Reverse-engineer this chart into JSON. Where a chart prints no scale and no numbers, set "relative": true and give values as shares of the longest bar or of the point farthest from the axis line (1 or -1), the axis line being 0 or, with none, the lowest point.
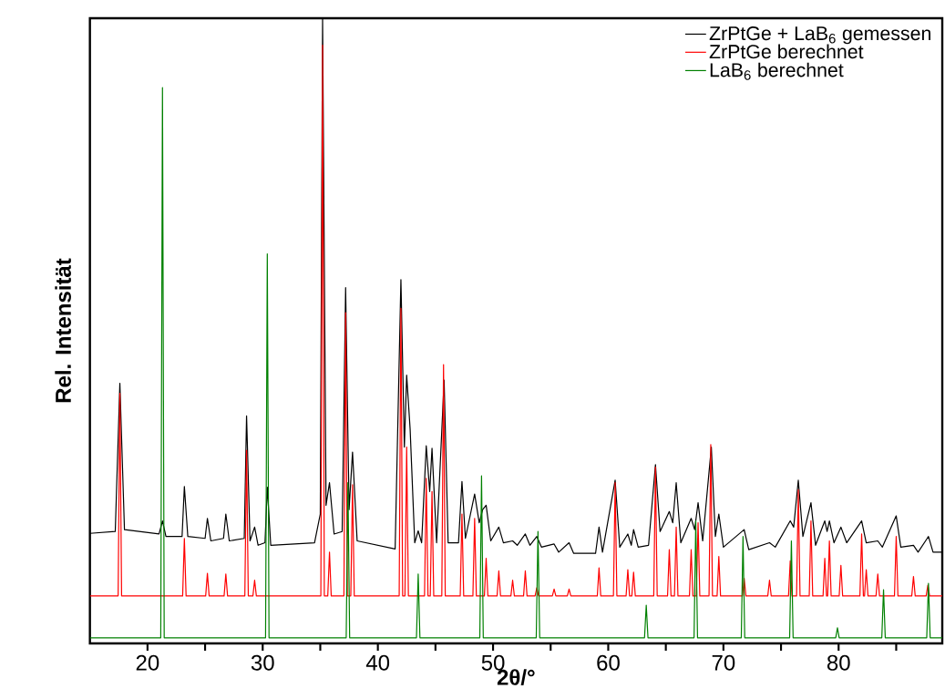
{
  "chart_data": {
    "type": "line",
    "relative": true,
    "xlabel": "2θ/°",
    "ylabel": "Rel. Intensität",
    "xlim": [
      15,
      89
    ],
    "xticks": [
      20,
      {
        "value": 25,
        "label": null
      },
      30,
      {
        "value": 35,
        "label": null
      },
      40,
      {
        "value": 45,
        "label": null
      },
      50,
      {
        "value": 55,
        "label": null
      },
      60,
      {
        "value": 65,
        "label": null
      },
      70,
      {
        "value": 75,
        "label": null
      },
      80,
      {
        "value": 85,
        "label": null
      }
    ],
    "legend": "top right",
    "marker": "none",
    "line_style": "solid",
    "series": [
      {
        "name": "ZrPtGe + LaB$_{6}$ gemessen",
        "color": "#000000",
        "x": [
          15,
          17.2,
          17.6,
          18.0,
          21.0,
          21.3,
          21.6,
          23.0,
          23.2,
          23.5,
          25.0,
          25.2,
          25.5,
          26.6,
          26.8,
          27.1,
          28.4,
          28.6,
          28.9,
          29.3,
          29.6,
          30.2,
          30.4,
          30.7,
          34.5,
          35.0,
          35.2,
          35.5,
          35.8,
          36.2,
          36.9,
          37.2,
          37.5,
          37.8,
          38.2,
          41.5,
          42.0,
          42.3,
          42.5,
          42.8,
          43.2,
          43.5,
          43.8,
          44.2,
          44.5,
          44.7,
          45.1,
          45.75,
          46.1,
          47.0,
          47.3,
          47.6,
          48.4,
          48.8,
          49.1,
          49.4,
          49.8,
          50.5,
          50.9,
          51.7,
          52.1,
          52.8,
          53.2,
          53.8,
          54.2,
          55.3,
          55.7,
          56.6,
          57.0,
          58.9,
          59.2,
          59.5,
          60.6,
          61.0,
          61.7,
          62.0,
          62.2,
          62.6,
          63.5,
          64.1,
          64.5,
          65.3,
          65.6,
          65.9,
          66.3,
          67.2,
          67.5,
          67.8,
          68.2,
          68.95,
          69.3,
          69.6,
          70.0,
          71.8,
          72.2,
          74.0,
          74.5,
          75.8,
          76.1,
          76.5,
          76.9,
          77.6,
          78.0,
          78.8,
          79.0,
          79.2,
          79.6,
          80.2,
          80.7,
          82.0,
          82.4,
          83.4,
          83.8,
          85.0,
          85.4,
          86.5,
          86.9,
          87.8,
          88.2,
          89
        ],
        "values": [
          0.176,
          0.179,
          0.416,
          0.182,
          0.175,
          0.196,
          0.171,
          0.171,
          0.251,
          0.171,
          0.168,
          0.2,
          0.164,
          0.168,
          0.207,
          0.164,
          0.168,
          0.364,
          0.164,
          0.186,
          0.157,
          0.161,
          0.25,
          0.157,
          0.161,
          0.207,
          1.0,
          0.221,
          0.257,
          0.175,
          0.179,
          0.569,
          0.214,
          0.306,
          0.164,
          0.151,
          0.582,
          0.314,
          0.429,
          0.343,
          0.161,
          0.18,
          0.161,
          0.316,
          0.243,
          0.312,
          0.161,
          0.421,
          0.161,
          0.161,
          0.259,
          0.168,
          0.239,
          0.193,
          0.214,
          0.221,
          0.164,
          0.186,
          0.161,
          0.164,
          0.157,
          0.175,
          0.157,
          0.171,
          0.154,
          0.159,
          0.146,
          0.161,
          0.144,
          0.144,
          0.186,
          0.146,
          0.261,
          0.154,
          0.175,
          0.157,
          0.182,
          0.154,
          0.157,
          0.286,
          0.179,
          0.211,
          0.193,
          0.257,
          0.161,
          0.2,
          0.182,
          0.225,
          0.164,
          0.314,
          0.171,
          0.207,
          0.154,
          0.182,
          0.15,
          0.161,
          0.154,
          0.196,
          0.186,
          0.261,
          0.171,
          0.225,
          0.157,
          0.196,
          0.179,
          0.196,
          0.161,
          0.186,
          0.161,
          0.196,
          0.161,
          0.164,
          0.154,
          0.204,
          0.154,
          0.157,
          0.146,
          0.171,
          0.146,
          0.146
        ]
      },
      {
        "name": "ZrPtGe berechnet",
        "color": "#ff0000",
        "x": [
          15,
          17.45,
          17.6,
          17.75,
          23.05,
          23.2,
          23.35,
          25.05,
          25.2,
          25.35,
          26.65,
          26.8,
          26.95,
          28.45,
          28.6,
          28.75,
          29.15,
          29.3,
          29.45,
          35.05,
          35.2,
          35.35,
          35.65,
          35.8,
          35.95,
          37.05,
          37.2,
          37.35,
          37.65,
          37.8,
          37.95,
          41.85,
          42.0,
          42.15,
          42.35,
          42.5,
          42.65,
          44.05,
          44.2,
          44.35,
          44.55,
          44.7,
          44.85,
          45.55,
          45.7,
          45.85,
          47.15,
          47.3,
          47.45,
          48.25,
          48.4,
          48.55,
          49.25,
          49.4,
          49.55,
          50.35,
          50.5,
          50.65,
          51.55,
          51.7,
          51.85,
          52.65,
          52.8,
          52.95,
          53.65,
          53.8,
          53.95,
          55.15,
          55.3,
          55.45,
          56.45,
          56.6,
          56.75,
          59.05,
          59.2,
          59.35,
          60.45,
          60.6,
          60.75,
          61.55,
          61.7,
          61.85,
          62.05,
          62.2,
          62.35,
          63.95,
          64.1,
          64.25,
          65.15,
          65.3,
          65.45,
          65.75,
          65.9,
          66.05,
          67.05,
          67.2,
          67.35,
          67.65,
          67.8,
          67.95,
          68.75,
          68.9,
          69.05,
          69.45,
          69.6,
          69.75,
          71.65,
          71.8,
          71.95,
          73.85,
          74.0,
          74.15,
          75.65,
          75.8,
          75.95,
          76.35,
          76.5,
          76.65,
          77.45,
          77.6,
          77.75,
          78.65,
          78.8,
          78.95,
          79.05,
          79.2,
          79.35,
          80.05,
          80.2,
          80.35,
          81.85,
          82.0,
          82.15,
          82.25,
          82.4,
          82.55,
          83.25,
          83.4,
          83.55,
          84.85,
          85.0,
          85.15,
          86.35,
          86.5,
          86.65,
          87.6,
          87.75,
          87.9,
          89
        ],
        "values": [
          0.076,
          0.076,
          0.4,
          0.076,
          0.076,
          0.168,
          0.076,
          0.076,
          0.112,
          0.076,
          0.076,
          0.111,
          0.076,
          0.076,
          0.309,
          0.076,
          0.076,
          0.101,
          0.076,
          0.076,
          0.957,
          0.076,
          0.076,
          0.146,
          0.076,
          0.076,
          0.529,
          0.076,
          0.076,
          0.254,
          0.076,
          0.076,
          0.536,
          0.076,
          0.076,
          0.314,
          0.076,
          0.076,
          0.264,
          0.076,
          0.076,
          0.243,
          0.076,
          0.076,
          0.446,
          0.076,
          0.076,
          0.207,
          0.076,
          0.076,
          0.2,
          0.076,
          0.076,
          0.136,
          0.076,
          0.076,
          0.116,
          0.076,
          0.076,
          0.101,
          0.076,
          0.076,
          0.116,
          0.076,
          0.076,
          0.089,
          0.076,
          0.076,
          0.087,
          0.076,
          0.076,
          0.087,
          0.076,
          0.076,
          0.121,
          0.076,
          0.076,
          0.257,
          0.076,
          0.076,
          0.118,
          0.076,
          0.076,
          0.114,
          0.076,
          0.076,
          0.282,
          0.076,
          0.076,
          0.15,
          0.076,
          0.076,
          0.186,
          0.076,
          0.076,
          0.15,
          0.076,
          0.076,
          0.193,
          0.076,
          0.076,
          0.318,
          0.076,
          0.076,
          0.139,
          0.076,
          0.076,
          0.104,
          0.076,
          0.076,
          0.101,
          0.076,
          0.076,
          0.132,
          0.076,
          0.076,
          0.246,
          0.076,
          0.076,
          0.196,
          0.076,
          0.076,
          0.136,
          0.076,
          0.076,
          0.164,
          0.076,
          0.076,
          0.125,
          0.076,
          0.076,
          0.175,
          0.076,
          0.076,
          0.118,
          0.076,
          0.076,
          0.111,
          0.076,
          0.076,
          0.171,
          0.076,
          0.076,
          0.107,
          0.076,
          0.076,
          0.093,
          0.076,
          0.076
        ]
      },
      {
        "name": "LaB$_{6}$ berechnet",
        "color": "#008000",
        "x": [
          15,
          21.15,
          21.3,
          21.45,
          30.25,
          30.4,
          30.55,
          37.25,
          37.4,
          37.55,
          43.35,
          43.5,
          43.65,
          48.85,
          49.0,
          49.15,
          53.75,
          53.9,
          54.05,
          63.15,
          63.3,
          63.45,
          67.45,
          67.6,
          67.75,
          71.55,
          71.7,
          71.85,
          75.75,
          75.9,
          76.05,
          79.75,
          79.9,
          80.05,
          83.75,
          83.9,
          84.05,
          87.65,
          87.8,
          87.95,
          89
        ],
        "values": [
          0.009,
          0.009,
          0.889,
          0.009,
          0.009,
          0.623,
          0.009,
          0.009,
          0.257,
          0.009,
          0.009,
          0.111,
          0.009,
          0.009,
          0.268,
          0.009,
          0.009,
          0.179,
          0.009,
          0.009,
          0.061,
          0.009,
          0.009,
          0.196,
          0.009,
          0.009,
          0.171,
          0.009,
          0.009,
          0.164,
          0.009,
          0.009,
          0.025,
          0.009,
          0.009,
          0.086,
          0.009,
          0.009,
          0.096,
          0.009,
          0.009
        ]
      }
    ]
  }
}
